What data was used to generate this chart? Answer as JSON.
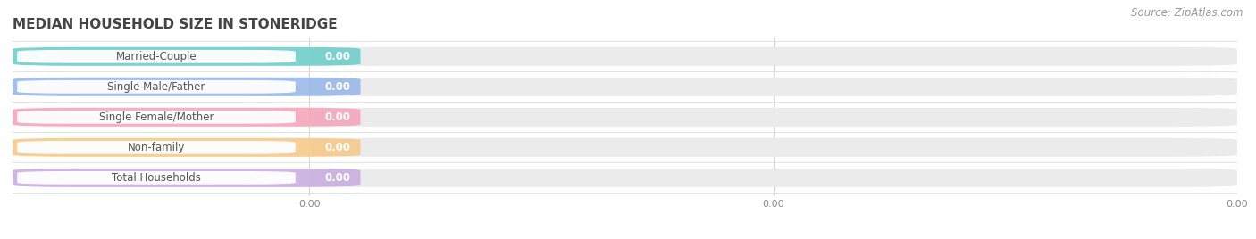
{
  "title": "MEDIAN HOUSEHOLD SIZE IN STONERIDGE",
  "source": "Source: ZipAtlas.com",
  "categories": [
    "Married-Couple",
    "Single Male/Father",
    "Single Female/Mother",
    "Non-family",
    "Total Households"
  ],
  "values": [
    0.0,
    0.0,
    0.0,
    0.0,
    0.0
  ],
  "bar_colors": [
    "#6ecfca",
    "#9ab8e8",
    "#f4a7b9",
    "#f7c98a",
    "#c9aee0"
  ],
  "bar_bg_color": "#ebebeb",
  "background_color": "#ffffff",
  "title_fontsize": 11,
  "label_fontsize": 8.5,
  "value_fontsize": 8.5,
  "source_fontsize": 8.5,
  "xtick_positions": [
    0.0,
    0.5,
    1.0
  ],
  "xtick_labels": [
    "0.00",
    "0.00",
    "0.00"
  ],
  "grid_color": "#d8d8d8",
  "text_color": "#555555",
  "title_color": "#444444"
}
